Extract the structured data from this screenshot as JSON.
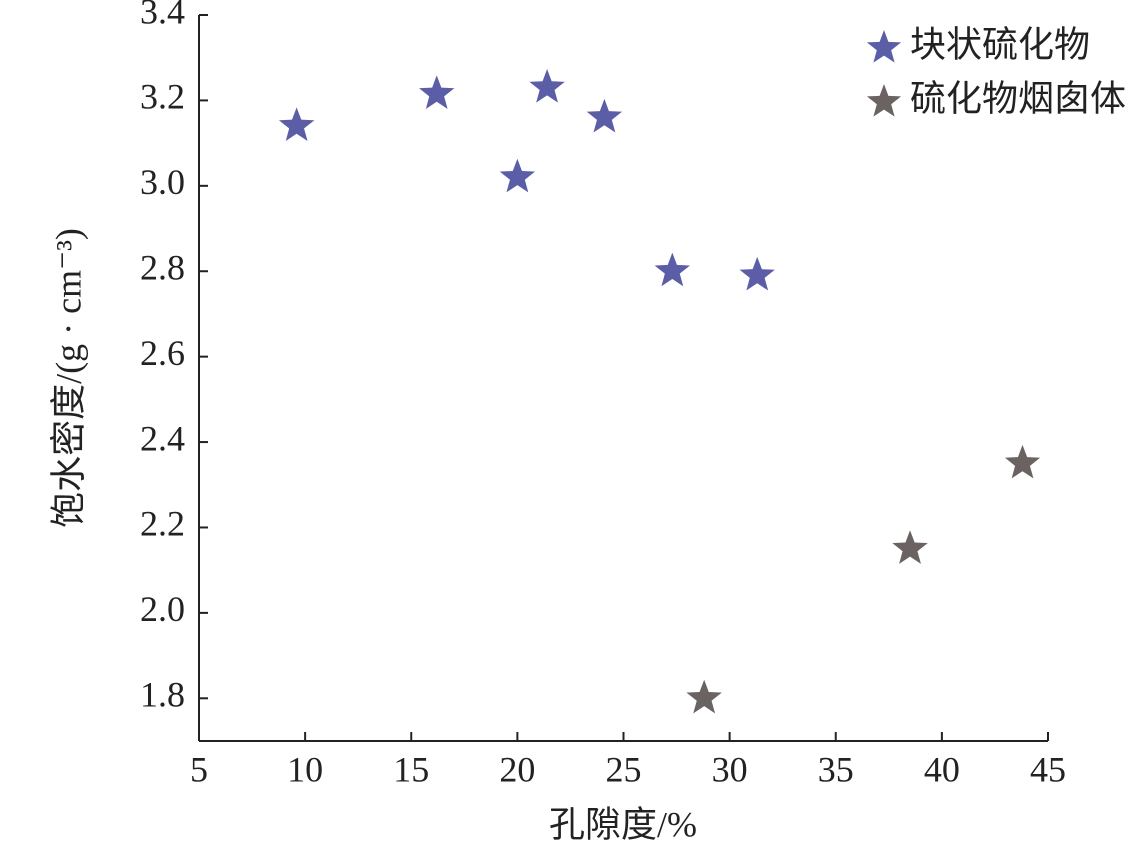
{
  "chart_data": {
    "type": "scatter",
    "x_label": "孔隙度/%",
    "y_label": "饱水密度/(g · cm⁻³)",
    "xlim": [
      5,
      45
    ],
    "xticks": [
      5,
      10,
      15,
      20,
      25,
      30,
      35,
      40,
      45
    ],
    "ylim": [
      1.7,
      3.4
    ],
    "yticks": [
      1.8,
      {
        "value": 2,
        "label": "2.0"
      },
      2.2,
      2.4,
      2.6,
      2.8,
      {
        "value": 3,
        "label": "3.0"
      },
      3.2,
      3.4
    ],
    "legend": "upper right",
    "series": [
      {
        "name": "块状硫化物",
        "color": "#5b5ea6",
        "x": [
          9.6,
          16.2,
          20.0,
          21.4,
          24.1,
          27.3,
          31.3
        ],
        "values": [
          3.14,
          3.215,
          3.02,
          3.23,
          3.16,
          2.8,
          2.79
        ]
      },
      {
        "name": "硫化物烟囱体",
        "color": "#6b6262",
        "x": [
          28.8,
          38.5,
          43.8
        ],
        "values": [
          1.8,
          2.15,
          2.35
        ]
      }
    ]
  }
}
